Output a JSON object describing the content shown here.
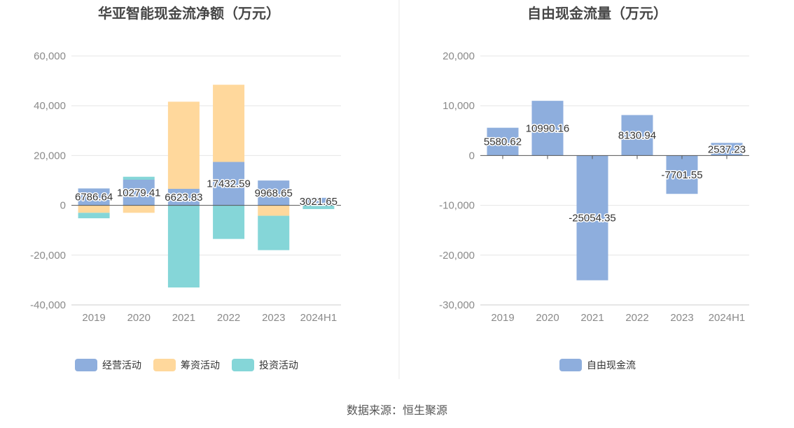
{
  "source": "数据来源：恒生聚源",
  "colors": {
    "operating": "#8eaedd",
    "financing": "#ffd89c",
    "investing": "#85d6d8",
    "free_cash_flow": "#8eaedd",
    "grid": "#e6e6e6",
    "axis": "#555555",
    "divider": "#e8e8e8"
  },
  "chart_data": [
    {
      "type": "bar",
      "stacked": true,
      "title": "华亚智能现金流净额（万元）",
      "categories": [
        "2019",
        "2020",
        "2021",
        "2022",
        "2023",
        "2024H1"
      ],
      "ylim": [
        -40000,
        60000
      ],
      "yticks": [
        60000,
        40000,
        20000,
        0,
        -20000,
        -40000
      ],
      "ytick_labels": [
        "60,000",
        "40,000",
        "20,000",
        "0",
        "-20,000",
        "-40,000"
      ],
      "grid": true,
      "legend_position": "bottom",
      "series": [
        {
          "name": "经营活动",
          "color_key": "operating",
          "values": [
            6786.64,
            10279.41,
            6623.83,
            17432.59,
            9968.65,
            3021.65
          ]
        },
        {
          "name": "筹资活动",
          "color_key": "financing",
          "values": [
            -3000,
            -3000,
            35000,
            31000,
            -4200,
            0
          ]
        },
        {
          "name": "投资活动",
          "color_key": "investing",
          "values": [
            -2200,
            1200,
            -33000,
            -13500,
            -13800,
            -1500
          ]
        }
      ],
      "data_labels": [
        "6786.64",
        "10279.41",
        "6623.83",
        "17432.59",
        "9968.65",
        "3021.65"
      ]
    },
    {
      "type": "bar",
      "title": "自由现金流量（万元）",
      "categories": [
        "2019",
        "2020",
        "2021",
        "2022",
        "2023",
        "2024H1"
      ],
      "ylim": [
        -30000,
        20000
      ],
      "yticks": [
        20000,
        10000,
        0,
        -10000,
        -20000,
        -30000
      ],
      "ytick_labels": [
        "20,000",
        "10,000",
        "0",
        "-10,000",
        "-20,000",
        "-30,000"
      ],
      "grid": true,
      "legend_position": "bottom",
      "series": [
        {
          "name": "自由现金流",
          "color_key": "free_cash_flow",
          "values": [
            5580.62,
            10990.16,
            -25054.35,
            8130.94,
            -7701.55,
            2537.23
          ]
        }
      ],
      "data_labels": [
        "5580.62",
        "10990.16",
        "-25054.35",
        "8130.94",
        "-7701.55",
        "2537.23"
      ]
    }
  ]
}
